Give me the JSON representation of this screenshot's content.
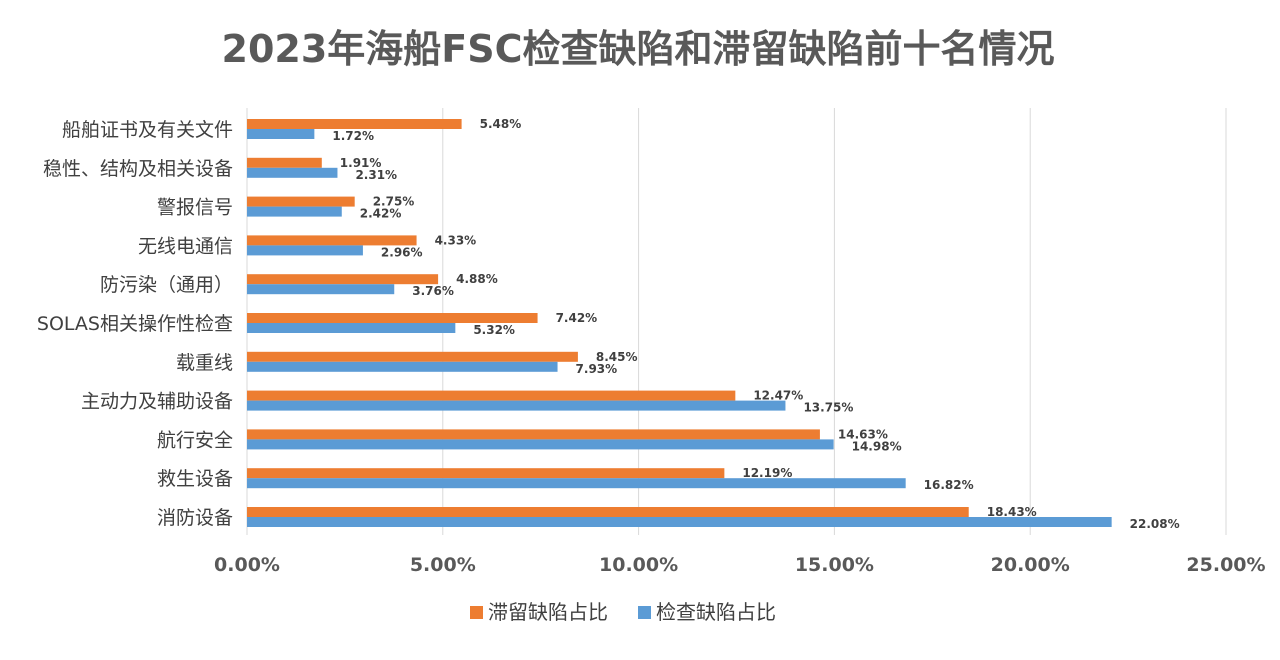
{
  "chart_data": {
    "type": "bar",
    "orientation": "horizontal",
    "title": "2023年海船FSC检查缺陷和滞留缺陷前十名情况",
    "categories": [
      "船舶证书及有关文件",
      "稳性、结构及相关设备",
      "警报信号",
      "无线电通信",
      "防污染（通用）",
      "SOLAS相关操作性检查",
      "载重线",
      "主动力及辅助设备",
      "航行安全",
      "救生设备",
      "消防设备"
    ],
    "series": [
      {
        "name": "滞留缺陷占比",
        "color": "#ED7D31",
        "values": [
          5.48,
          1.91,
          2.75,
          4.33,
          4.88,
          7.42,
          8.45,
          12.47,
          14.63,
          12.19,
          18.43
        ],
        "labels": [
          "5.48%",
          "1.91%",
          "2.75%",
          "4.33%",
          "4.88%",
          "7.42%",
          "8.45%",
          "12.47%",
          "14.63%",
          "12.19%",
          "18.43%"
        ]
      },
      {
        "name": "检查缺陷占比",
        "color": "#5B9BD5",
        "values": [
          1.72,
          2.31,
          2.42,
          2.96,
          3.76,
          5.32,
          7.93,
          13.75,
          14.98,
          16.82,
          22.08
        ],
        "labels": [
          "1.72%",
          "2.31%",
          "2.42%",
          "2.96%",
          "3.76%",
          "5.32%",
          "7.93%",
          "13.75%",
          "14.98%",
          "16.82%",
          "22.08%"
        ]
      }
    ],
    "xlim": [
      0,
      25
    ],
    "xticks": [
      0,
      5,
      10,
      15,
      20,
      25
    ],
    "xtick_labels": [
      "0.00%",
      "5.00%",
      "10.00%",
      "15.00%",
      "20.00%",
      "25.00%"
    ],
    "grid": true,
    "legend_position": "bottom"
  }
}
